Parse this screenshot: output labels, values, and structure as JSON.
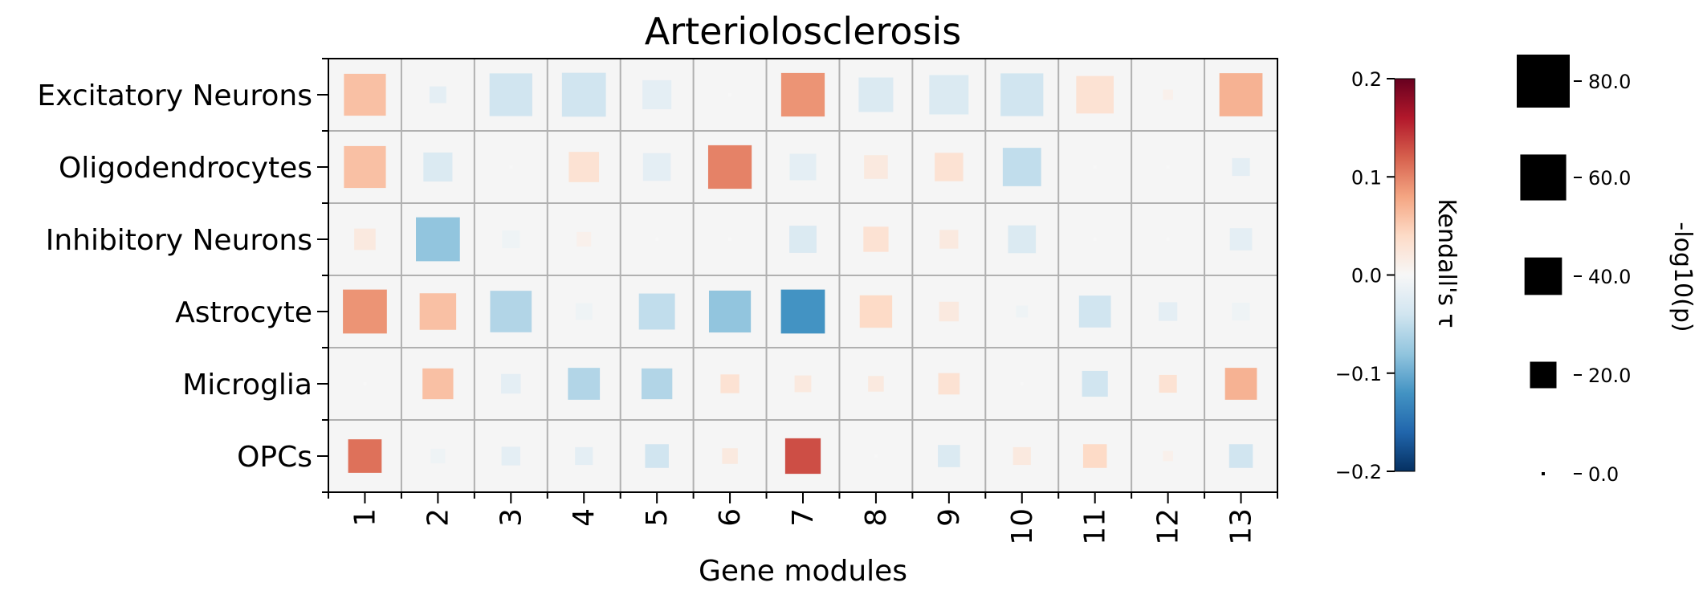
{
  "chart_data": {
    "type": "heatmap",
    "title": "Arteriolosclerosis",
    "xlabel": "Gene modules",
    "ylabel": "",
    "categories_x": [
      "1",
      "2",
      "3",
      "4",
      "5",
      "6",
      "7",
      "8",
      "9",
      "10",
      "11",
      "12",
      "13"
    ],
    "categories_y": [
      "Excitatory Neurons",
      "Oligodendrocytes",
      "Inhibitory Neurons",
      "Astrocyte",
      "Microglia",
      "OPCs"
    ],
    "values_tau": [
      [
        0.06,
        -0.02,
        -0.04,
        -0.04,
        -0.02,
        0.0,
        0.09,
        -0.03,
        -0.03,
        -0.04,
        0.03,
        0.01,
        0.07
      ],
      [
        0.06,
        -0.03,
        0.0,
        0.03,
        -0.02,
        0.1,
        -0.02,
        0.02,
        0.03,
        -0.05,
        0.0,
        0.0,
        -0.02
      ],
      [
        0.02,
        -0.08,
        -0.01,
        0.01,
        0.0,
        0.0,
        -0.03,
        0.03,
        0.02,
        -0.03,
        0.0,
        0.0,
        -0.02
      ],
      [
        0.09,
        0.06,
        -0.06,
        -0.01,
        -0.05,
        -0.08,
        -0.12,
        0.04,
        0.02,
        -0.01,
        -0.04,
        -0.02,
        -0.01
      ],
      [
        0.0,
        0.06,
        -0.02,
        -0.06,
        -0.06,
        0.03,
        0.02,
        0.02,
        0.03,
        0.0,
        -0.04,
        0.03,
        0.07
      ],
      [
        0.11,
        -0.01,
        -0.02,
        -0.02,
        -0.04,
        0.02,
        0.13,
        0.0,
        -0.03,
        0.02,
        0.04,
        0.01,
        -0.04
      ]
    ],
    "values_neglog10p": [
      [
        50,
        8,
        52,
        55,
        24,
        0,
        54,
        34,
        44,
        52,
        40,
        3,
        53
      ],
      [
        50,
        24,
        0,
        26,
        22,
        54,
        20,
        16,
        23,
        42,
        0,
        0,
        9
      ],
      [
        13,
        55,
        9,
        6,
        0,
        0,
        21,
        18,
        10,
        22,
        0,
        0,
        14
      ],
      [
        55,
        38,
        49,
        8,
        37,
        50,
        55,
        30,
        11,
        4,
        29,
        10,
        9
      ],
      [
        0,
        27,
        11,
        29,
        27,
        10,
        8,
        7,
        13,
        0,
        19,
        9,
        29
      ],
      [
        32,
        6,
        10,
        9,
        16,
        7,
        36,
        0,
        14,
        9,
        16,
        3,
        16
      ]
    ],
    "grid": true,
    "colorbar": {
      "label": "Kendall's τ",
      "cmap": "RdBu_r",
      "range": [
        -0.2,
        0.2
      ],
      "ticks": [
        "0.2",
        "0.1",
        "0.0",
        "−0.1",
        "−0.2"
      ],
      "tick_values": [
        0.2,
        0.1,
        0.0,
        -0.1,
        -0.2
      ]
    },
    "size_legend": {
      "label": "-log10(p)",
      "values": [
        80,
        60,
        40,
        20,
        0
      ],
      "labels": [
        "80.0",
        "60.0",
        "40.0",
        "20.0",
        "0.0"
      ]
    }
  }
}
